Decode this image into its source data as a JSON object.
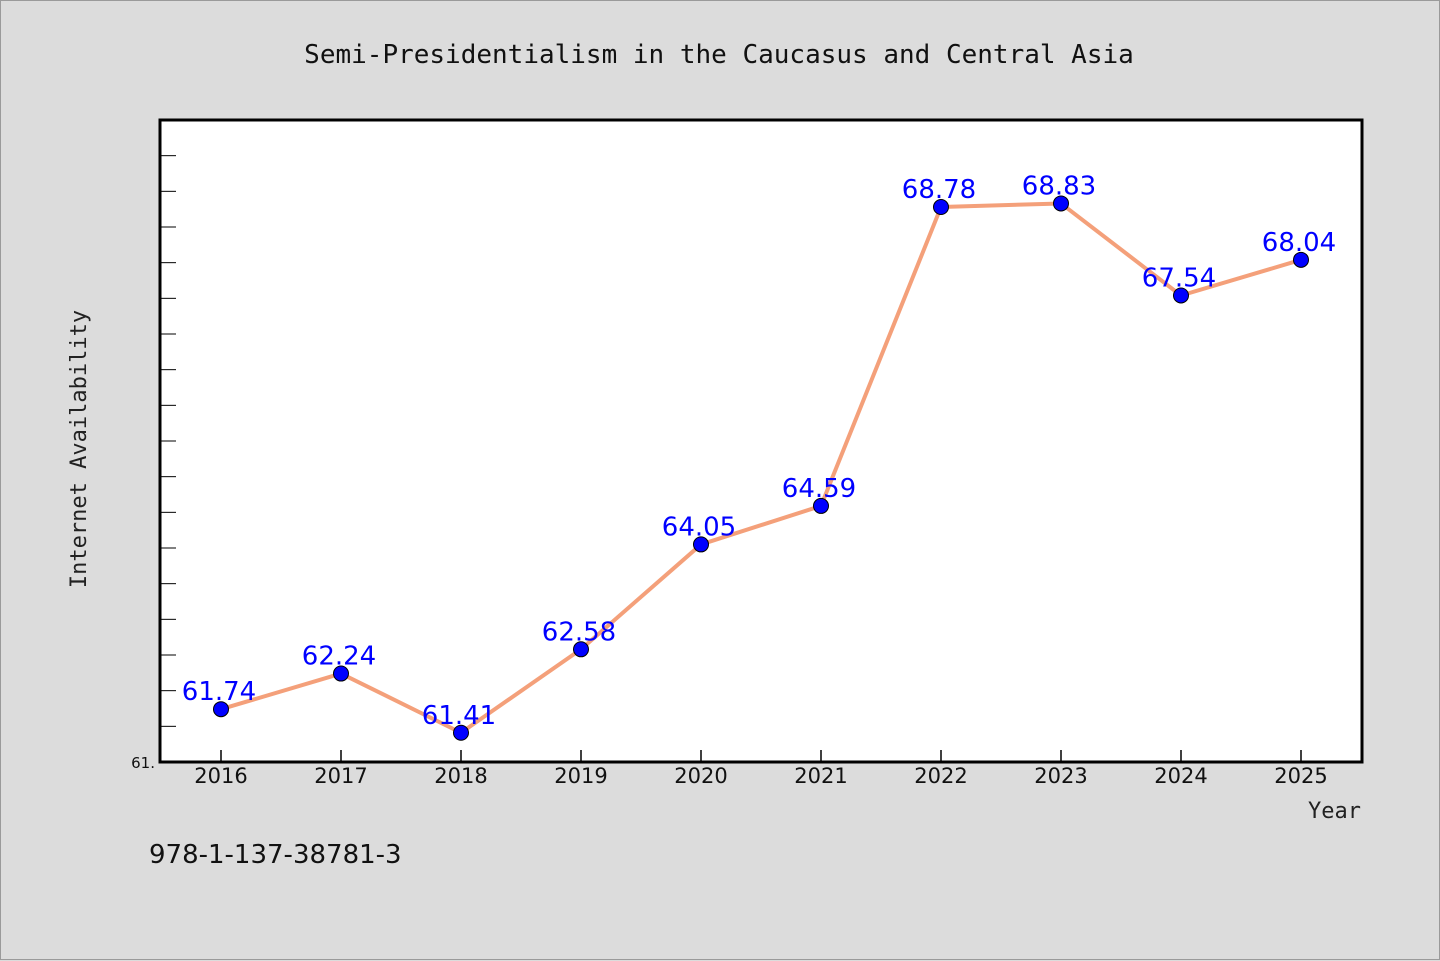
{
  "chart_data": {
    "type": "line",
    "title": "Semi-Presidentialism in the Caucasus and Central Asia",
    "xlabel": "Year",
    "ylabel": "Internet Availability",
    "categories": [
      "2016",
      "2017",
      "2018",
      "2019",
      "2020",
      "2021",
      "2022",
      "2023",
      "2024",
      "2025"
    ],
    "series": [
      {
        "values": [
          61.74,
          62.24,
          61.41,
          62.58,
          64.05,
          64.59,
          68.78,
          68.83,
          67.54,
          68.04
        ],
        "data_labels": [
          "61.74",
          "62.24",
          "61.41",
          "62.58",
          "64.05",
          "64.59",
          "68.78",
          "68.83",
          "67.54",
          "68.04"
        ]
      }
    ],
    "ylim": [
      61.0,
      70.0
    ],
    "y_tick_label": "61.",
    "grid": false,
    "line_color": "#f4a07a",
    "marker_color": "#0000ff",
    "label_color": "#0000ff",
    "background_color": "#dcdcdc",
    "plot_background_color": "#ffffff"
  },
  "footer": {
    "isbn": "978-1-137-38781-3"
  }
}
